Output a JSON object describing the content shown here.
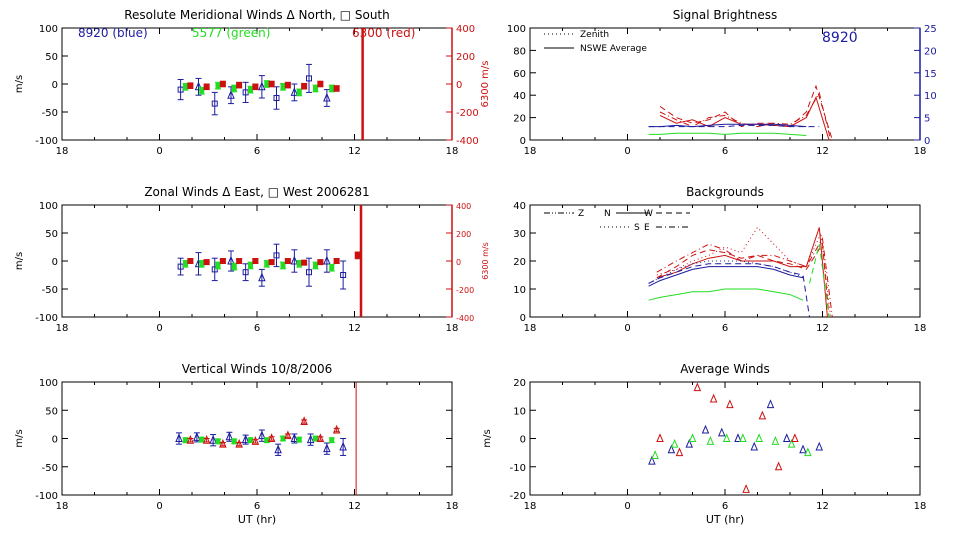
{
  "colors": {
    "blue": "#1c1ca0",
    "green": "#22dd22",
    "red": "#cc1111",
    "axis": "#000000",
    "right_blue": "#1c1ca0"
  },
  "x_ticks": [
    "18",
    "0",
    "6",
    "12",
    "18"
  ],
  "chart_data": [
    {
      "id": "meridional",
      "type": "scatter",
      "title": "Resolute Meridional Winds Δ North, □ South",
      "ylabel": "m/s",
      "ylim": [
        -100,
        100
      ],
      "yticks": [
        "100",
        "50",
        "0",
        "-50",
        "-100"
      ],
      "right_axis": {
        "label": "6300 m/s",
        "ylim": [
          -400,
          400
        ],
        "ticks": [
          "400",
          "200",
          "0",
          "-200",
          "-400"
        ]
      },
      "xlim": [
        -6,
        18
      ],
      "legend": [
        {
          "text": "8920 (blue)",
          "color": "blue"
        },
        {
          "text": "5577 (green)",
          "color": "green"
        },
        {
          "text": "6300 (red)",
          "color": "red"
        }
      ],
      "vline_x": 12.5,
      "series": [
        {
          "name": "8920 (blue)",
          "color": "blue",
          "marker": "mixed",
          "x": [
            1.3,
            2.4,
            3.4,
            4.4,
            5.3,
            6.3,
            7.2,
            8.3,
            9.2,
            10.3
          ],
          "y": [
            -10,
            -5,
            -35,
            -20,
            -15,
            -5,
            -25,
            -15,
            10,
            -25
          ],
          "err": [
            18,
            15,
            20,
            15,
            18,
            20,
            20,
            15,
            25,
            15
          ]
        },
        {
          "name": "5577 (green)",
          "color": "green",
          "marker": "circle",
          "x": [
            1.6,
            2.6,
            3.6,
            4.6,
            5.6,
            6.6,
            7.6,
            8.6,
            9.6,
            10.6
          ],
          "y": [
            -5,
            -12,
            -3,
            -8,
            -10,
            0,
            -5,
            -15,
            -8,
            -8
          ],
          "err": [
            6,
            6,
            6,
            6,
            6,
            6,
            6,
            6,
            6,
            6
          ]
        },
        {
          "name": "6300 (red)",
          "color": "red",
          "marker": "square",
          "x": [
            1.9,
            2.9,
            3.9,
            4.9,
            5.9,
            6.9,
            7.9,
            8.9,
            9.9,
            10.9
          ],
          "y": [
            -3,
            -5,
            0,
            -2,
            -5,
            0,
            -2,
            -4,
            0,
            -8
          ],
          "err": [
            5,
            5,
            5,
            5,
            5,
            5,
            5,
            5,
            5,
            5
          ]
        }
      ]
    },
    {
      "id": "zonal",
      "type": "scatter",
      "title": "Zonal Winds Δ East, □ West 2006281",
      "ylabel": "m/s",
      "ylim": [
        -100,
        100
      ],
      "yticks": [
        "100",
        "50",
        "0",
        "-50",
        "-100"
      ],
      "right_axis": {
        "label": "6300 m/s",
        "ylim": [
          -400,
          400
        ],
        "ticks": [
          "400",
          "200",
          "0",
          "-200",
          "-400"
        ]
      },
      "xlim": [
        -6,
        18
      ],
      "vline_x": 12.4,
      "series": [
        {
          "name": "8920",
          "color": "blue",
          "marker": "mixed",
          "x": [
            1.3,
            2.4,
            3.4,
            4.4,
            5.3,
            6.3,
            7.2,
            8.3,
            9.2,
            10.3,
            11.3
          ],
          "y": [
            -10,
            -5,
            -15,
            0,
            -20,
            -30,
            10,
            0,
            -20,
            0,
            -25
          ],
          "err": [
            15,
            20,
            20,
            18,
            15,
            15,
            20,
            20,
            25,
            20,
            25
          ]
        },
        {
          "name": "5577",
          "color": "green",
          "marker": "circle",
          "x": [
            1.6,
            2.6,
            3.6,
            4.6,
            5.6,
            6.6,
            7.6,
            8.6,
            9.6,
            10.6
          ],
          "y": [
            -5,
            -5,
            -8,
            -10,
            -8,
            -5,
            -8,
            -5,
            -8,
            -12
          ],
          "err": [
            6,
            6,
            6,
            6,
            6,
            6,
            6,
            6,
            6,
            6
          ]
        },
        {
          "name": "6300",
          "color": "red",
          "marker": "square",
          "x": [
            1.9,
            2.9,
            3.9,
            4.9,
            5.9,
            6.9,
            7.9,
            8.9,
            9.9,
            10.9,
            12.2
          ],
          "y": [
            0,
            -2,
            0,
            0,
            0,
            -2,
            0,
            -3,
            -2,
            0,
            10
          ],
          "err": [
            4,
            4,
            4,
            4,
            4,
            4,
            4,
            4,
            4,
            4,
            6
          ]
        }
      ]
    },
    {
      "id": "vertical",
      "type": "scatter",
      "title": "Vertical Winds 10/8/2006",
      "ylabel": "m/s",
      "xlabel": "UT (hr)",
      "ylim": [
        -100,
        100
      ],
      "yticks": [
        "100",
        "50",
        "0",
        "-50",
        "-100"
      ],
      "xlim": [
        -6,
        18
      ],
      "vline_x": 12.1,
      "series": [
        {
          "name": "8920",
          "color": "blue",
          "marker": "triangle",
          "x": [
            1.2,
            2.3,
            3.3,
            4.3,
            5.3,
            6.3,
            7.3,
            8.3,
            9.3,
            10.3,
            11.3
          ],
          "y": [
            0,
            2,
            -3,
            3,
            -2,
            5,
            -20,
            0,
            -2,
            -18,
            -15
          ],
          "err": [
            10,
            8,
            10,
            8,
            8,
            10,
            10,
            8,
            10,
            10,
            15
          ]
        },
        {
          "name": "5577",
          "color": "green",
          "marker": "circle",
          "x": [
            1.6,
            2.6,
            3.6,
            4.6,
            5.6,
            6.6,
            7.6,
            8.6,
            9.6,
            10.6
          ],
          "y": [
            -3,
            -2,
            -5,
            -5,
            -3,
            -3,
            0,
            -2,
            0,
            -3
          ],
          "err": [
            4,
            4,
            4,
            4,
            4,
            4,
            4,
            4,
            4,
            4
          ]
        },
        {
          "name": "6300",
          "color": "red",
          "marker": "triangle",
          "x": [
            1.9,
            2.9,
            3.9,
            4.9,
            5.9,
            6.9,
            7.9,
            8.9,
            9.9,
            10.9
          ],
          "y": [
            -3,
            -3,
            -10,
            -10,
            -5,
            0,
            5,
            30,
            0,
            15
          ],
          "err": [
            3,
            3,
            3,
            3,
            3,
            3,
            3,
            3,
            3,
            3
          ]
        }
      ]
    },
    {
      "id": "brightness",
      "type": "line",
      "title": "Signal Brightness",
      "ylim": [
        0,
        100
      ],
      "yticks": [
        "100",
        "80",
        "60",
        "40",
        "20",
        "0"
      ],
      "right_axis": {
        "label": "",
        "ylim": [
          0,
          25
        ],
        "ticks": [
          "25",
          "20",
          "15",
          "10",
          "5",
          "0"
        ]
      },
      "xlim": [
        -6,
        18
      ],
      "annotation": "8920",
      "legend": [
        {
          "text": "Zenith",
          "style": "dotted"
        },
        {
          "text": "NSWE Average",
          "style": "solid"
        }
      ],
      "series": [
        {
          "name": "red-avg",
          "color": "red",
          "style": "solid",
          "x": [
            2,
            3,
            4,
            5,
            6,
            7,
            8,
            9,
            10,
            11,
            11.6,
            12.4
          ],
          "y": [
            22,
            15,
            18,
            12,
            20,
            14,
            14,
            13,
            12,
            20,
            38,
            0
          ]
        },
        {
          "name": "red-dashed",
          "color": "red",
          "style": "dashed",
          "x": [
            2,
            3,
            4,
            5,
            6,
            7,
            8,
            9,
            10,
            11,
            11.6,
            12.6
          ],
          "y": [
            30,
            20,
            15,
            18,
            25,
            12,
            15,
            15,
            12,
            25,
            48,
            0
          ]
        },
        {
          "name": "red-dashdot",
          "color": "red",
          "style": "dashdot",
          "x": [
            2,
            3,
            4,
            5,
            6,
            7,
            8,
            9,
            10,
            11,
            11.8,
            12.5
          ],
          "y": [
            25,
            18,
            12,
            20,
            22,
            15,
            12,
            15,
            14,
            22,
            42,
            0
          ]
        },
        {
          "name": "blue-avg",
          "color": "blue",
          "style": "solid",
          "x": [
            1.3,
            2,
            3,
            4,
            5,
            6,
            7,
            8,
            9,
            10,
            11
          ],
          "y": [
            12,
            12,
            13,
            12,
            13,
            14,
            14,
            14,
            14,
            13,
            12
          ]
        },
        {
          "name": "blue-dashed",
          "color": "blue",
          "style": "dashed",
          "x": [
            1.3,
            2,
            3,
            4,
            5,
            6,
            7,
            8,
            9,
            10,
            11,
            11.8
          ],
          "y": [
            12,
            12,
            12,
            12,
            12,
            12,
            13,
            13,
            13,
            12,
            12,
            12
          ]
        },
        {
          "name": "green-avg",
          "color": "green",
          "style": "solid",
          "x": [
            1.3,
            2,
            3,
            4,
            5,
            6,
            7,
            8,
            9,
            10,
            11
          ],
          "y": [
            5,
            5,
            6,
            6,
            6,
            5,
            6,
            6,
            6,
            5,
            4
          ]
        }
      ]
    },
    {
      "id": "backgrounds",
      "type": "line",
      "title": "Backgrounds",
      "ylim": [
        0,
        40
      ],
      "yticks": [
        "40",
        "30",
        "20",
        "10",
        "0"
      ],
      "xlim": [
        -6,
        18
      ],
      "legend": [
        {
          "text": "Z",
          "style": "dashdotdot"
        },
        {
          "text": "N",
          "style": "solid"
        },
        {
          "text": "W",
          "style": "dashed"
        },
        {
          "text": "S",
          "style": "dotted"
        },
        {
          "text": "E",
          "style": "dashdot"
        }
      ],
      "series": [
        {
          "name": "red-N",
          "color": "red",
          "style": "solid",
          "x": [
            1.8,
            3,
            4,
            5,
            6,
            7,
            8,
            9,
            10,
            11,
            11.8,
            12.3
          ],
          "y": [
            14,
            16,
            19,
            21,
            22,
            20,
            20,
            20,
            18,
            18,
            32,
            0
          ]
        },
        {
          "name": "red-S",
          "color": "red",
          "style": "dotted",
          "x": [
            1.8,
            3,
            4,
            5,
            6,
            7,
            8,
            9,
            10,
            11,
            11.9,
            12.5
          ],
          "y": [
            15,
            17,
            20,
            22,
            25,
            23,
            32,
            26,
            20,
            18,
            30,
            0
          ]
        },
        {
          "name": "red-E",
          "color": "red",
          "style": "dashdot",
          "x": [
            1.8,
            3,
            4,
            5,
            6,
            7,
            8,
            9,
            10,
            11,
            12,
            12.6
          ],
          "y": [
            16,
            20,
            23,
            26,
            24,
            20,
            22,
            22,
            20,
            18,
            28,
            0
          ]
        },
        {
          "name": "red-W",
          "color": "red",
          "style": "dashed",
          "x": [
            1.8,
            3,
            4,
            5,
            6,
            7,
            8,
            9,
            10,
            11,
            12,
            12.4
          ],
          "y": [
            14,
            18,
            22,
            24,
            23,
            21,
            22,
            20,
            19,
            17,
            26,
            0
          ]
        },
        {
          "name": "blue-1",
          "color": "blue",
          "style": "solid",
          "x": [
            1.3,
            2,
            3,
            4,
            5,
            6,
            7,
            8,
            9,
            10,
            10.8
          ],
          "y": [
            11,
            13,
            15,
            17,
            18,
            18,
            18,
            18,
            17,
            15,
            14
          ]
        },
        {
          "name": "blue-2",
          "color": "blue",
          "style": "dashed",
          "x": [
            1.3,
            2,
            3,
            4,
            5,
            6,
            7,
            8,
            9,
            10,
            10.8,
            11.2
          ],
          "y": [
            12,
            14,
            16,
            18,
            19,
            19,
            19,
            19,
            18,
            16,
            15,
            0
          ]
        },
        {
          "name": "blue-3",
          "color": "blue",
          "style": "dotted",
          "x": [
            1.3,
            2,
            3,
            4,
            5,
            6,
            7,
            8,
            9,
            10,
            10.9
          ],
          "y": [
            12,
            14,
            17,
            19,
            20,
            20,
            20,
            19,
            18,
            16,
            14
          ]
        },
        {
          "name": "green-1",
          "color": "green",
          "style": "solid",
          "x": [
            1.3,
            2,
            3,
            4,
            5,
            6,
            7,
            8,
            9,
            10,
            10.8
          ],
          "y": [
            6,
            7,
            8,
            9,
            9,
            10,
            10,
            10,
            9,
            8,
            6
          ]
        },
        {
          "name": "green-2",
          "color": "green",
          "style": "dashed",
          "x": [
            11.2,
            11.8,
            12.4
          ],
          "y": [
            12,
            26,
            0
          ]
        }
      ]
    },
    {
      "id": "average",
      "type": "scatter",
      "title": "Average Winds",
      "ylabel": "m/s",
      "xlabel": "UT (hr)",
      "ylim": [
        -20,
        20
      ],
      "yticks": [
        "20",
        "10",
        "0",
        "-10",
        "-20"
      ],
      "xlim": [
        -6,
        18
      ],
      "series": [
        {
          "name": "blue",
          "color": "blue",
          "marker": "triangle",
          "x": [
            1.5,
            2.7,
            3.8,
            4.8,
            5.8,
            6.8,
            7.8,
            8.8,
            9.8,
            10.8,
            11.8
          ],
          "y": [
            -8,
            -4,
            -2,
            3,
            2,
            0,
            -3,
            12,
            0,
            -4,
            -3
          ]
        },
        {
          "name": "green",
          "color": "green",
          "marker": "triangle",
          "x": [
            1.7,
            2.9,
            4.0,
            5.1,
            6.1,
            7.1,
            8.1,
            9.1,
            10.1,
            11.1
          ],
          "y": [
            -6,
            -2,
            0,
            -1,
            0,
            0,
            0,
            -1,
            -2,
            -5
          ]
        },
        {
          "name": "red",
          "color": "red",
          "marker": "triangle",
          "x": [
            2.0,
            3.2,
            4.3,
            5.3,
            6.3,
            7.3,
            8.3,
            9.3,
            10.3
          ],
          "y": [
            0,
            -5,
            18,
            14,
            12,
            -18,
            8,
            -10,
            0
          ]
        }
      ]
    }
  ]
}
